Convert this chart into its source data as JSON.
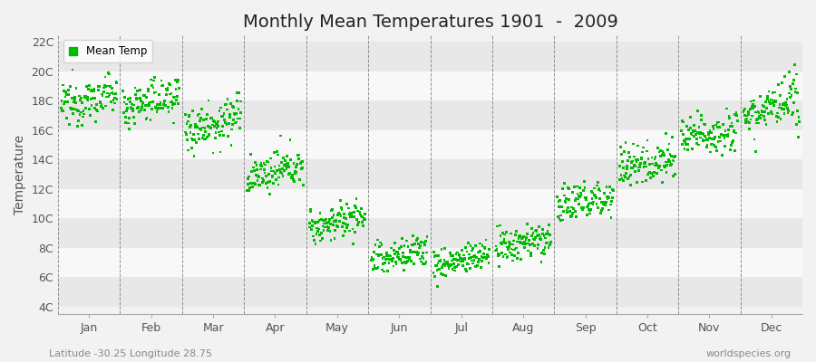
{
  "title": "Monthly Mean Temperatures 1901  -  2009",
  "ylabel": "Temperature",
  "ytick_labels": [
    "4C",
    "6C",
    "8C",
    "10C",
    "12C",
    "14C",
    "16C",
    "18C",
    "20C",
    "22C"
  ],
  "ytick_values": [
    4,
    6,
    8,
    10,
    12,
    14,
    16,
    18,
    20,
    22
  ],
  "months": [
    "Jan",
    "Feb",
    "Mar",
    "Apr",
    "May",
    "Jun",
    "Jul",
    "Aug",
    "Sep",
    "Oct",
    "Nov",
    "Dec"
  ],
  "ylim": [
    3.5,
    22.5
  ],
  "dot_color": "#00bb00",
  "dot_size": 4,
  "legend_label": "Mean Temp",
  "subtitle_left": "Latitude -30.25 Longitude 28.75",
  "subtitle_right": "worldspecies.org",
  "bg_color": "#f2f2f2",
  "stripe_light": "#f8f8f8",
  "stripe_dark": "#e8e8e8",
  "grid_color": "#666666",
  "title_fontsize": 14,
  "n_years": 109,
  "monthly_means": [
    18.1,
    18.0,
    16.5,
    13.2,
    9.8,
    7.5,
    7.2,
    8.3,
    11.2,
    13.8,
    15.8,
    17.5
  ],
  "monthly_stds": [
    0.7,
    0.7,
    0.8,
    0.6,
    0.6,
    0.6,
    0.5,
    0.6,
    0.7,
    0.7,
    0.7,
    0.8
  ],
  "warming_trend": 0.008
}
